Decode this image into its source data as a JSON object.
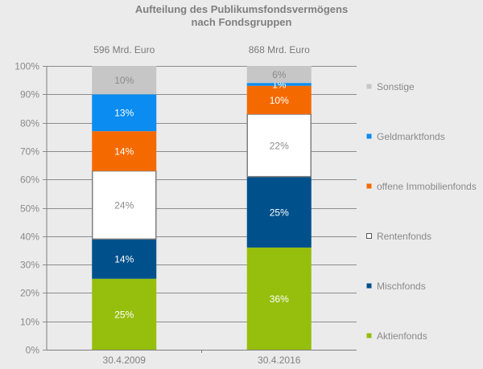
{
  "chart_data": {
    "type": "bar",
    "stacked": true,
    "title": "Aufteilung des Publikumsfondsvermögens",
    "subtitle": "nach Fondsgruppen",
    "xlabel": "",
    "ylabel": "",
    "categories": [
      "30.4.2009",
      "30.4.2016"
    ],
    "totals": [
      "596 Mrd.  Euro",
      "868 Mrd.  Euro"
    ],
    "ylim": [
      0,
      100
    ],
    "yticks": [
      "0%",
      "10%",
      "20%",
      "30%",
      "40%",
      "50%",
      "60%",
      "70%",
      "80%",
      "90%",
      "100%"
    ],
    "grid": true,
    "legend_position": "right",
    "series": [
      {
        "name": "Aktienfonds",
        "color": "#96be0d",
        "values": [
          25,
          36
        ],
        "labels": [
          "25%",
          "36%"
        ],
        "label_color": "#ffffff"
      },
      {
        "name": "Mischfonds",
        "color": "#00508c",
        "values": [
          14,
          25
        ],
        "labels": [
          "14%",
          "25%"
        ],
        "label_color": "#ffffff"
      },
      {
        "name": "Rentenfonds",
        "color": "#ffffff",
        "values": [
          24,
          22
        ],
        "labels": [
          "24%",
          "22%"
        ],
        "label_color": "#8a8a8a"
      },
      {
        "name": "offene Immobilienfonds",
        "color": "#f56a00",
        "values": [
          14,
          10
        ],
        "labels": [
          "14%",
          "10%"
        ],
        "label_color": "#ffffff"
      },
      {
        "name": "Geldmarktfonds",
        "color": "#0a8cf0",
        "values": [
          13,
          1
        ],
        "labels": [
          "13%",
          "1%"
        ],
        "label_color": "#ffffff"
      },
      {
        "name": "Sonstige",
        "color": "#c6c6c6",
        "values": [
          10,
          6
        ],
        "labels": [
          "10%",
          "6%"
        ],
        "label_color": "#8a8a8a"
      }
    ]
  }
}
